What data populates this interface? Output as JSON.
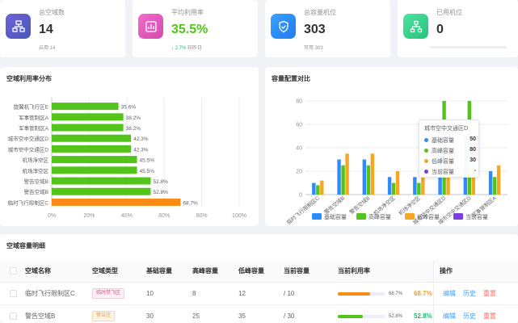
{
  "stats": [
    {
      "label": "总空域数",
      "value": "14",
      "sub": "启用 14",
      "color": "#5b5fc7"
    },
    {
      "label": "平均利用率",
      "value": "35.5%",
      "trend": "↓ 2.7%",
      "trend_note": "较昨日",
      "color": "#e056b6"
    },
    {
      "label": "总容量机位",
      "value": "303",
      "sub": "可用 303",
      "color": "#2e8bff"
    },
    {
      "label": "已用机位",
      "value": "0",
      "progress": 0,
      "color": "#3fd38f"
    }
  ],
  "utilization_panel": {
    "title": "空域利用率分布"
  },
  "capacity_panel": {
    "title": "容量配置对比"
  },
  "tooltip": {
    "title": "城市空中交通区D",
    "rows": [
      {
        "label": "基础容量",
        "value": "50",
        "color": "#2e8bff"
      },
      {
        "label": "高峰容量",
        "value": "80",
        "color": "#52c41a"
      },
      {
        "label": "低峰容量",
        "value": "30",
        "color": "#f5a623"
      },
      {
        "label": "当前容量",
        "value": "-",
        "color": "#7b3fe4"
      }
    ]
  },
  "chart_data": [
    {
      "type": "bar",
      "orientation": "horizontal",
      "title": "空域利用率分布",
      "categories": [
        "旋翼机飞行区E",
        "军事管制区A",
        "军事管制区A",
        "城市空中交通区D",
        "城市空中交通区D",
        "机场净空区",
        "机场净空区",
        "警告空域B",
        "警告空域B",
        "临时飞行限制区C"
      ],
      "values": [
        35.6,
        38.2,
        38.2,
        42.3,
        42.3,
        45.5,
        45.5,
        52.8,
        52.8,
        68.7
      ],
      "data_labels": [
        "35.6%",
        "38.2%",
        "38.2%",
        "42.3%",
        "42.3%",
        "45.5%",
        "45.5%",
        "52.8%",
        "52.8%",
        "68.7%"
      ],
      "xlim": [
        0,
        100
      ],
      "x_ticks": [
        "0%",
        "20%",
        "40%",
        "60%",
        "80%",
        "100%"
      ],
      "bar_colors": [
        "#52c41a",
        "#52c41a",
        "#52c41a",
        "#52c41a",
        "#52c41a",
        "#52c41a",
        "#52c41a",
        "#52c41a",
        "#52c41a",
        "#fa8c16"
      ],
      "grid": true
    },
    {
      "type": "bar",
      "title": "容量配置对比",
      "categories": [
        "临时飞行限制区C",
        "警告空域B",
        "警告空域B",
        "机场净空区",
        "机场净空区",
        "城市空中交通区D",
        "城市空中交通区D",
        "军事管制区A"
      ],
      "series": [
        {
          "name": "基础容量",
          "color": "#2e8bff",
          "values": [
            10,
            30,
            30,
            15,
            15,
            50,
            50,
            20
          ]
        },
        {
          "name": "高峰容量",
          "color": "#52c41a",
          "values": [
            8,
            25,
            25,
            10,
            10,
            80,
            80,
            15
          ]
        },
        {
          "name": "低峰容量",
          "color": "#f5a623",
          "values": [
            12,
            35,
            35,
            20,
            20,
            30,
            30,
            25
          ]
        },
        {
          "name": "当前容量",
          "color": "#7b3fe4",
          "values": [
            0,
            0,
            0,
            0,
            0,
            0,
            0,
            0
          ]
        }
      ],
      "ylim": [
        0,
        80
      ],
      "y_ticks": [
        "0",
        "20",
        "40",
        "60",
        "80"
      ],
      "legend_position": "bottom",
      "grid": true
    }
  ],
  "table": {
    "title": "空域容量明细",
    "headers": [
      "空域名称",
      "空域类型",
      "基础容量",
      "高峰容量",
      "低峰容量",
      "当前容量",
      "当前利用率",
      "操作"
    ],
    "rows": [
      {
        "name": "临时飞行限制区C",
        "type": "临时禁飞区",
        "type_style": "pink",
        "base": "10",
        "peak": "8",
        "low": "12",
        "current": "/ 10",
        "util": 68.7,
        "util_label": "68.7%",
        "util_color": "#fa8c16",
        "util_text": "68.7%",
        "util_text_color": "#e6a23c"
      },
      {
        "name": "警告空域B",
        "type": "警告区",
        "type_style": "orange",
        "base": "30",
        "peak": "25",
        "low": "35",
        "current": "/ 30",
        "util": 52.8,
        "util_label": "52.8%",
        "util_color": "#52c41a",
        "util_text": "52.8%",
        "util_text_color": "#19be6b"
      }
    ],
    "actions": [
      "编辑",
      "历史",
      "重置"
    ]
  }
}
